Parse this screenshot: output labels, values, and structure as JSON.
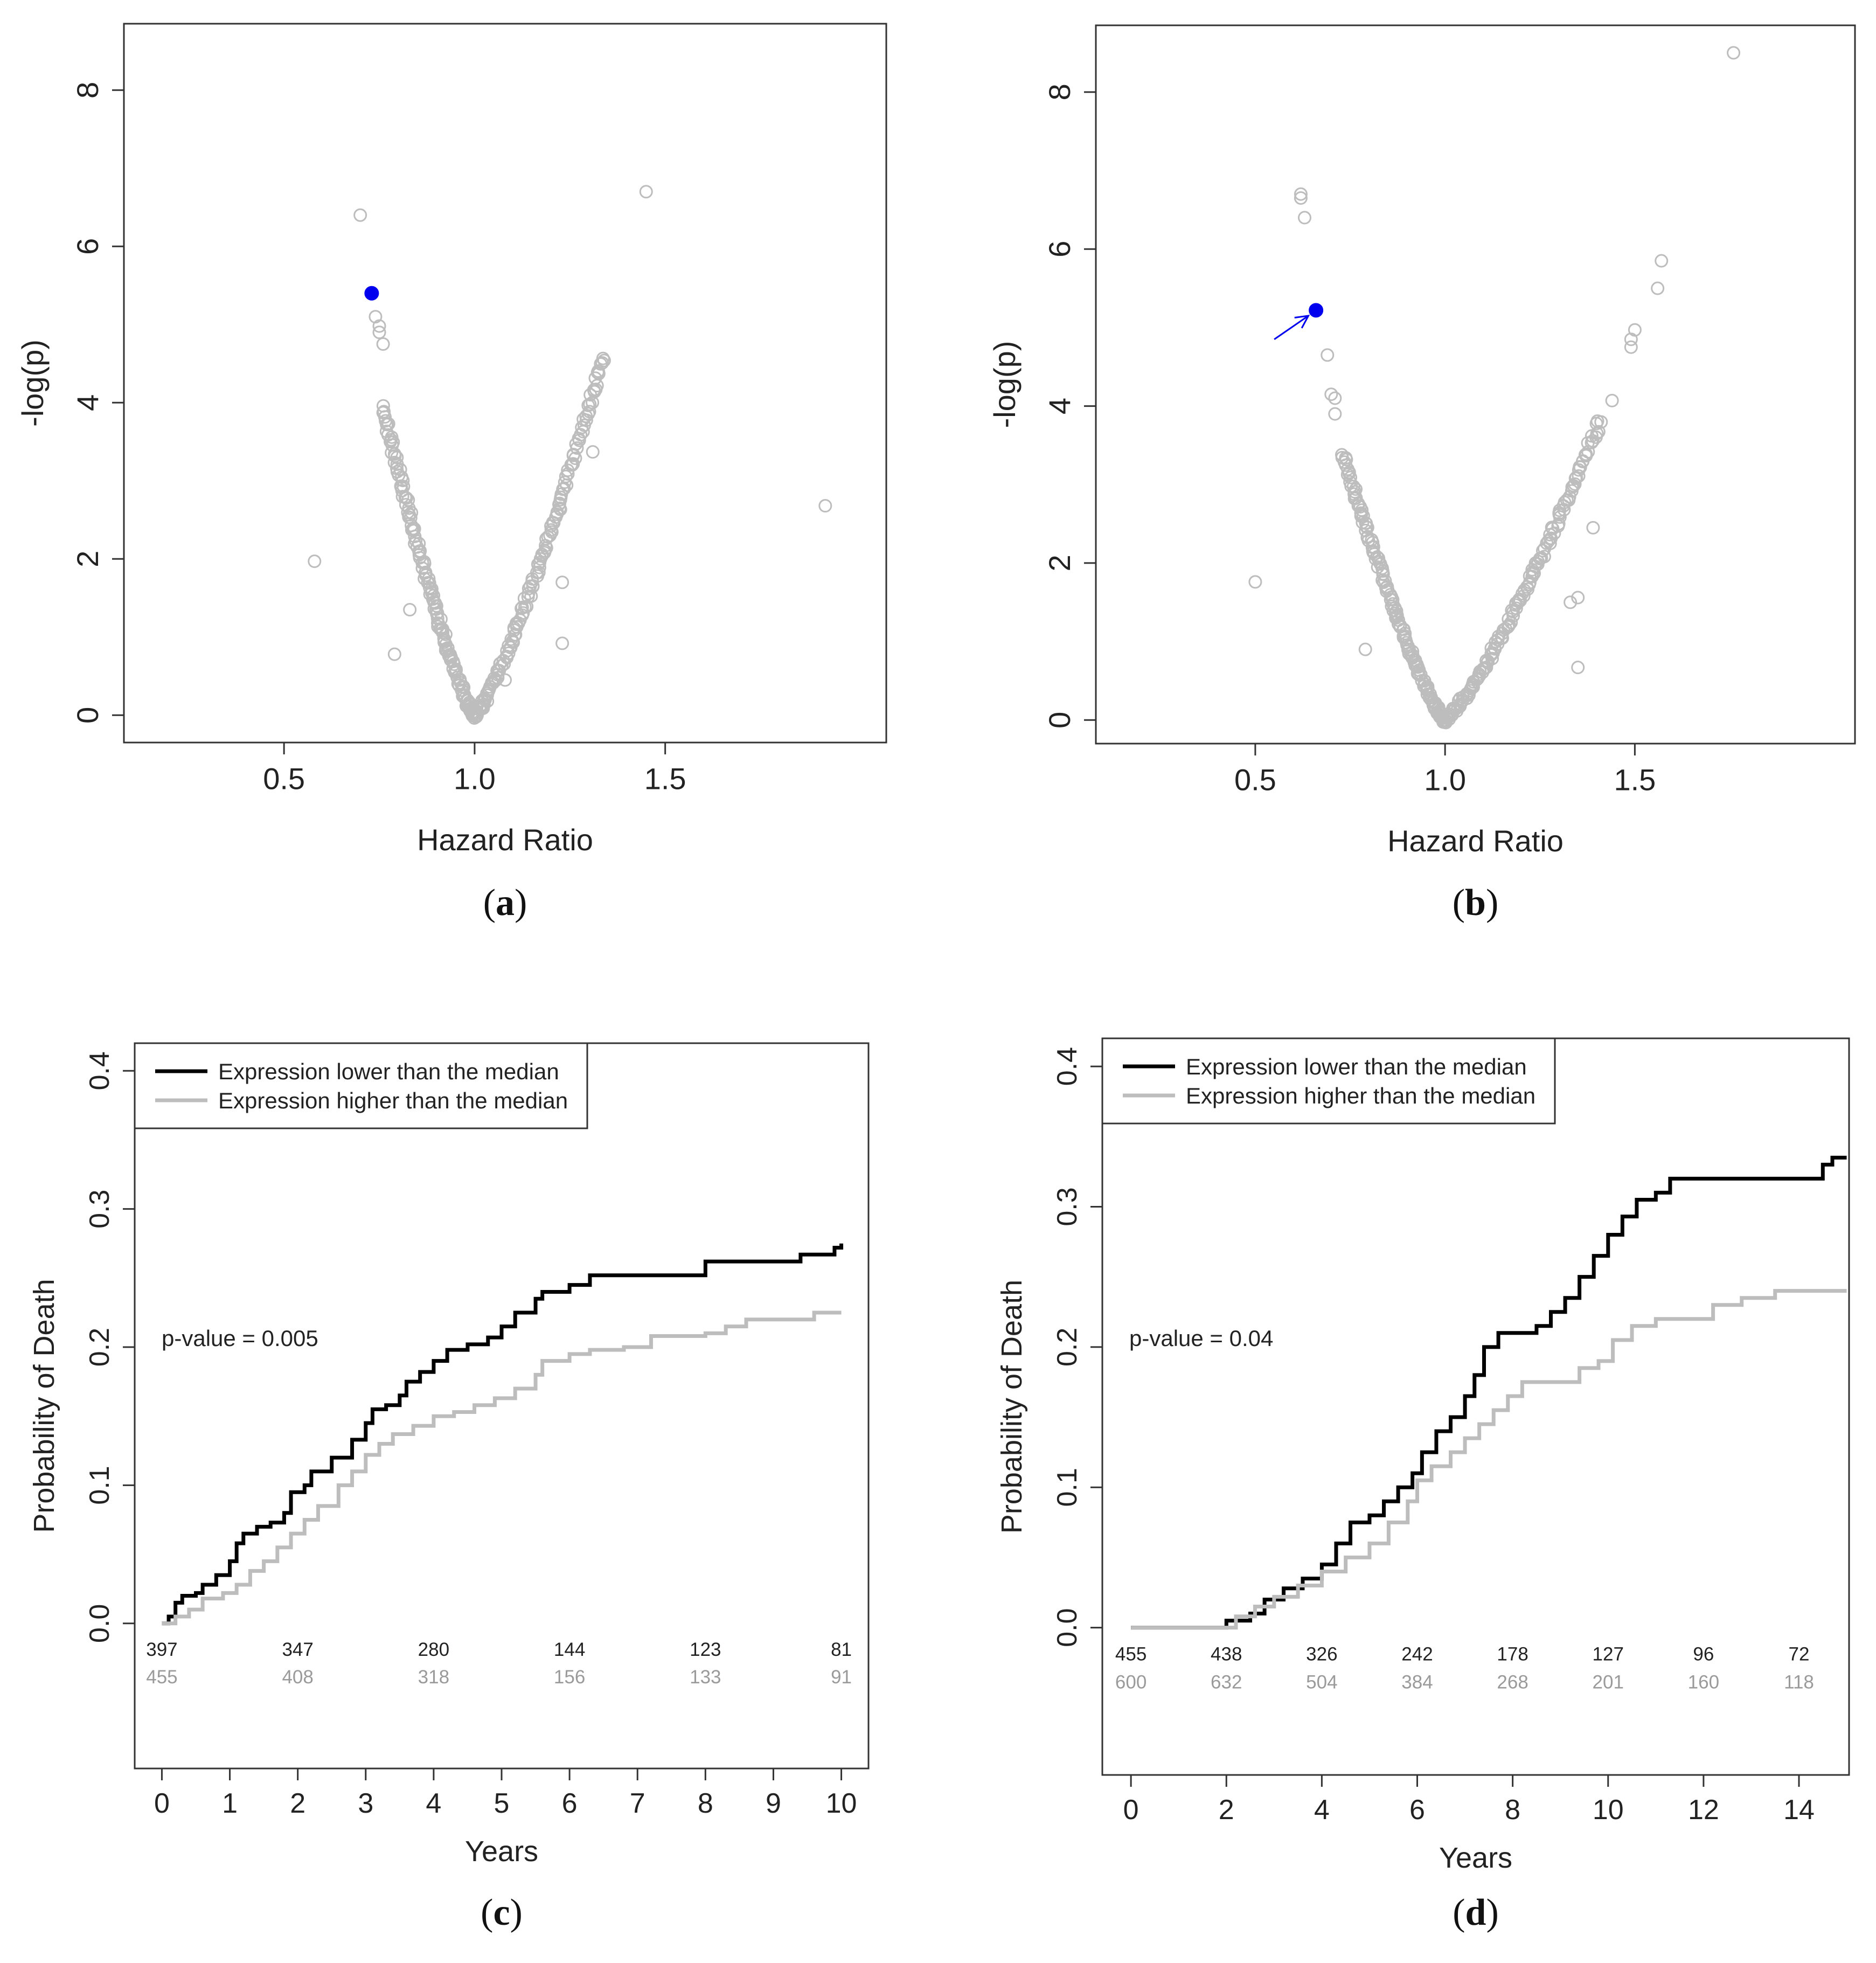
{
  "chart_data": [
    {
      "panel": "a",
      "panel_label": {
        "open": "(",
        "letter": "a",
        "close": ")"
      },
      "type": "scatter",
      "xlabel": "Hazard Ratio",
      "ylabel": "-log(p)",
      "xlim": [
        0.08,
        2.08
      ],
      "ylim": [
        -0.35,
        8.85
      ],
      "xticks": [
        0.5,
        1.0,
        1.5
      ],
      "xtick_labels": [
        "0.5",
        "1.0",
        "1.5"
      ],
      "yticks": [
        0,
        2,
        4,
        6,
        8
      ],
      "ytick_labels": [
        "0",
        "2",
        "4",
        "6",
        "8"
      ],
      "highlight": {
        "x": 0.73,
        "y": 5.4,
        "color": "#0000ee"
      },
      "outliers": [
        [
          0.7,
          6.4
        ],
        [
          1.45,
          6.7
        ],
        [
          0.58,
          1.97
        ],
        [
          1.92,
          2.68
        ],
        [
          0.79,
          0.78
        ],
        [
          1.23,
          0.92
        ],
        [
          1.23,
          1.7
        ],
        [
          1.31,
          3.37
        ],
        [
          0.74,
          5.1
        ],
        [
          0.75,
          4.98
        ],
        [
          0.75,
          4.9
        ],
        [
          0.76,
          4.75
        ],
        [
          0.83,
          1.35
        ],
        [
          1.08,
          0.45
        ]
      ],
      "v_shape": {
        "vertex": [
          1.0,
          0.0
        ],
        "left_top": [
          0.76,
          3.95
        ],
        "right_top": [
          1.34,
          4.6
        ],
        "n_points_per_arm": 150
      },
      "point_color": "#bdbdbd"
    },
    {
      "panel": "b",
      "panel_label": {
        "open": "(",
        "letter": "b",
        "close": ")"
      },
      "type": "scatter",
      "xlabel": "Hazard Ratio",
      "ylabel": "-log(p)",
      "xlim": [
        0.08,
        2.08
      ],
      "ylim": [
        -0.3,
        8.85
      ],
      "xticks": [
        0.5,
        1.0,
        1.5
      ],
      "xtick_labels": [
        "0.5",
        "1.0",
        "1.5"
      ],
      "yticks": [
        0,
        2,
        4,
        6,
        8
      ],
      "ytick_labels": [
        "0",
        "2",
        "4",
        "6",
        "8"
      ],
      "highlight": {
        "x": 0.66,
        "y": 5.22,
        "color": "#0000ee"
      },
      "arrow": {
        "from": [
          0.55,
          4.85
        ],
        "to": [
          0.64,
          5.15
        ],
        "color": "#0000ee"
      },
      "outliers": [
        [
          0.62,
          6.7
        ],
        [
          0.62,
          6.65
        ],
        [
          0.63,
          6.4
        ],
        [
          1.76,
          8.5
        ],
        [
          1.57,
          5.85
        ],
        [
          1.56,
          5.5
        ],
        [
          1.5,
          4.97
        ],
        [
          1.49,
          4.75
        ],
        [
          1.49,
          4.85
        ],
        [
          0.5,
          1.76
        ],
        [
          1.39,
          2.45
        ],
        [
          1.35,
          0.67
        ],
        [
          1.35,
          1.56
        ],
        [
          1.44,
          4.07
        ],
        [
          0.69,
          4.65
        ],
        [
          0.79,
          0.9
        ],
        [
          1.33,
          1.5
        ],
        [
          0.7,
          4.15
        ],
        [
          0.71,
          4.1
        ],
        [
          0.71,
          3.9
        ]
      ],
      "v_shape": {
        "vertex": [
          1.0,
          0.0
        ],
        "left_top": [
          0.73,
          3.4
        ],
        "right_top": [
          1.41,
          3.82
        ],
        "n_points_per_arm": 150
      },
      "point_color": "#bdbdbd"
    },
    {
      "panel": "c",
      "panel_label": {
        "open": "(",
        "letter": "c",
        "close": ")"
      },
      "type": "line",
      "subtype": "step",
      "xlabel": "Years",
      "ylabel": "Probability of Death",
      "xlim": [
        -0.4,
        10.4
      ],
      "ylim": [
        -0.105,
        0.42
      ],
      "xticks": [
        0,
        1,
        2,
        3,
        4,
        5,
        6,
        7,
        8,
        9,
        10
      ],
      "xtick_labels": [
        "0",
        "1",
        "2",
        "3",
        "4",
        "5",
        "6",
        "7",
        "8",
        "9",
        "10"
      ],
      "yticks": [
        0.0,
        0.1,
        0.2,
        0.3,
        0.4
      ],
      "ytick_labels": [
        "0.0",
        "0.1",
        "0.2",
        "0.3",
        "0.4"
      ],
      "annotation": "p-value = 0.005",
      "legend": [
        "Expression lower than the median",
        "Expression higher than the median"
      ],
      "legend_position": "top-left",
      "series": [
        {
          "name": "Expression lower than the median",
          "color": "#000000",
          "points": [
            [
              0,
              0
            ],
            [
              0.1,
              0.005
            ],
            [
              0.2,
              0.015
            ],
            [
              0.3,
              0.02
            ],
            [
              0.5,
              0.022
            ],
            [
              0.6,
              0.028
            ],
            [
              0.8,
              0.035
            ],
            [
              1.0,
              0.045
            ],
            [
              1.1,
              0.058
            ],
            [
              1.2,
              0.065
            ],
            [
              1.4,
              0.07
            ],
            [
              1.6,
              0.073
            ],
            [
              1.8,
              0.08
            ],
            [
              1.9,
              0.095
            ],
            [
              2.1,
              0.1
            ],
            [
              2.2,
              0.11
            ],
            [
              2.5,
              0.12
            ],
            [
              2.8,
              0.133
            ],
            [
              3.0,
              0.145
            ],
            [
              3.1,
              0.155
            ],
            [
              3.3,
              0.158
            ],
            [
              3.5,
              0.165
            ],
            [
              3.6,
              0.175
            ],
            [
              3.8,
              0.182
            ],
            [
              4.0,
              0.19
            ],
            [
              4.2,
              0.198
            ],
            [
              4.5,
              0.202
            ],
            [
              4.8,
              0.207
            ],
            [
              5.0,
              0.215
            ],
            [
              5.2,
              0.225
            ],
            [
              5.5,
              0.235
            ],
            [
              5.6,
              0.24
            ],
            [
              6.0,
              0.245
            ],
            [
              6.3,
              0.252
            ],
            [
              7.0,
              0.252
            ],
            [
              8.0,
              0.262
            ],
            [
              9.0,
              0.262
            ],
            [
              9.4,
              0.267
            ],
            [
              9.9,
              0.272
            ],
            [
              10.0,
              0.275
            ]
          ]
        },
        {
          "name": "Expression higher than the median",
          "color": "#bdbdbd",
          "points": [
            [
              0,
              0
            ],
            [
              0.2,
              0.005
            ],
            [
              0.4,
              0.01
            ],
            [
              0.6,
              0.018
            ],
            [
              0.9,
              0.022
            ],
            [
              1.1,
              0.028
            ],
            [
              1.3,
              0.038
            ],
            [
              1.5,
              0.045
            ],
            [
              1.7,
              0.055
            ],
            [
              1.9,
              0.065
            ],
            [
              2.1,
              0.075
            ],
            [
              2.3,
              0.085
            ],
            [
              2.6,
              0.1
            ],
            [
              2.8,
              0.11
            ],
            [
              3.0,
              0.122
            ],
            [
              3.2,
              0.13
            ],
            [
              3.4,
              0.137
            ],
            [
              3.7,
              0.143
            ],
            [
              4.0,
              0.15
            ],
            [
              4.3,
              0.153
            ],
            [
              4.6,
              0.158
            ],
            [
              4.9,
              0.163
            ],
            [
              5.2,
              0.17
            ],
            [
              5.5,
              0.18
            ],
            [
              5.6,
              0.19
            ],
            [
              6.0,
              0.195
            ],
            [
              6.3,
              0.198
            ],
            [
              6.8,
              0.2
            ],
            [
              7.2,
              0.208
            ],
            [
              8.0,
              0.21
            ],
            [
              8.3,
              0.215
            ],
            [
              8.6,
              0.22
            ],
            [
              9.3,
              0.22
            ],
            [
              9.6,
              0.225
            ],
            [
              10.0,
              0.225
            ]
          ]
        }
      ],
      "at_risk": {
        "times": [
          0,
          2,
          4,
          6,
          8,
          10
        ],
        "lower": [
          "397",
          "347",
          "280",
          "144",
          "123",
          "81"
        ],
        "higher": [
          "455",
          "408",
          "318",
          "156",
          "133",
          "91"
        ]
      }
    },
    {
      "panel": "d",
      "panel_label": {
        "open": "(",
        "letter": "d",
        "close": ")"
      },
      "type": "line",
      "subtype": "step",
      "xlabel": "Years",
      "ylabel": "Probability of Death",
      "xlim": [
        -0.6,
        15.05
      ],
      "ylim": [
        -0.105,
        0.42
      ],
      "xticks": [
        0,
        2,
        4,
        6,
        8,
        10,
        12,
        14
      ],
      "xtick_labels": [
        "0",
        "2",
        "4",
        "6",
        "8",
        "10",
        "12",
        "14"
      ],
      "yticks": [
        0.0,
        0.1,
        0.2,
        0.3,
        0.4
      ],
      "ytick_labels": [
        "0.0",
        "0.1",
        "0.2",
        "0.3",
        "0.4"
      ],
      "annotation": "p-value = 0.04",
      "legend": [
        "Expression lower than the median",
        "Expression higher than the median"
      ],
      "legend_position": "top-left",
      "series": [
        {
          "name": "Expression lower than the median",
          "color": "#000000",
          "points": [
            [
              0,
              0
            ],
            [
              1.8,
              0
            ],
            [
              2.0,
              0.005
            ],
            [
              2.5,
              0.01
            ],
            [
              2.8,
              0.02
            ],
            [
              3.2,
              0.028
            ],
            [
              3.6,
              0.035
            ],
            [
              4.0,
              0.045
            ],
            [
              4.3,
              0.06
            ],
            [
              4.6,
              0.075
            ],
            [
              5.0,
              0.08
            ],
            [
              5.3,
              0.09
            ],
            [
              5.6,
              0.1
            ],
            [
              5.9,
              0.11
            ],
            [
              6.1,
              0.125
            ],
            [
              6.4,
              0.14
            ],
            [
              6.7,
              0.15
            ],
            [
              7.0,
              0.165
            ],
            [
              7.2,
              0.18
            ],
            [
              7.4,
              0.2
            ],
            [
              7.7,
              0.21
            ],
            [
              8.5,
              0.215
            ],
            [
              8.8,
              0.225
            ],
            [
              9.1,
              0.235
            ],
            [
              9.4,
              0.25
            ],
            [
              9.7,
              0.265
            ],
            [
              10.0,
              0.28
            ],
            [
              10.3,
              0.293
            ],
            [
              10.6,
              0.305
            ],
            [
              11.0,
              0.31
            ],
            [
              11.3,
              0.32
            ],
            [
              14.3,
              0.32
            ],
            [
              14.5,
              0.33
            ],
            [
              14.7,
              0.335
            ],
            [
              15.0,
              0.335
            ]
          ]
        },
        {
          "name": "Expression higher than the median",
          "color": "#bdbdbd",
          "points": [
            [
              0,
              0
            ],
            [
              1.8,
              0
            ],
            [
              2.2,
              0.008
            ],
            [
              2.6,
              0.015
            ],
            [
              3.0,
              0.022
            ],
            [
              3.5,
              0.03
            ],
            [
              4.0,
              0.04
            ],
            [
              4.5,
              0.05
            ],
            [
              5.0,
              0.06
            ],
            [
              5.4,
              0.075
            ],
            [
              5.8,
              0.09
            ],
            [
              6.0,
              0.105
            ],
            [
              6.3,
              0.115
            ],
            [
              6.7,
              0.125
            ],
            [
              7.0,
              0.135
            ],
            [
              7.3,
              0.145
            ],
            [
              7.6,
              0.155
            ],
            [
              7.9,
              0.165
            ],
            [
              8.2,
              0.175
            ],
            [
              9.0,
              0.175
            ],
            [
              9.4,
              0.185
            ],
            [
              9.8,
              0.19
            ],
            [
              10.1,
              0.205
            ],
            [
              10.5,
              0.215
            ],
            [
              11.0,
              0.22
            ],
            [
              11.8,
              0.22
            ],
            [
              12.2,
              0.23
            ],
            [
              12.8,
              0.235
            ],
            [
              13.5,
              0.24
            ],
            [
              15.0,
              0.24
            ]
          ]
        }
      ],
      "at_risk": {
        "times": [
          0,
          2,
          4,
          6,
          8,
          10,
          12,
          14
        ],
        "lower": [
          "455",
          "438",
          "326",
          "242",
          "178",
          "127",
          "96",
          "72"
        ],
        "higher": [
          "600",
          "632",
          "504",
          "384",
          "268",
          "201",
          "160",
          "118"
        ]
      }
    }
  ]
}
